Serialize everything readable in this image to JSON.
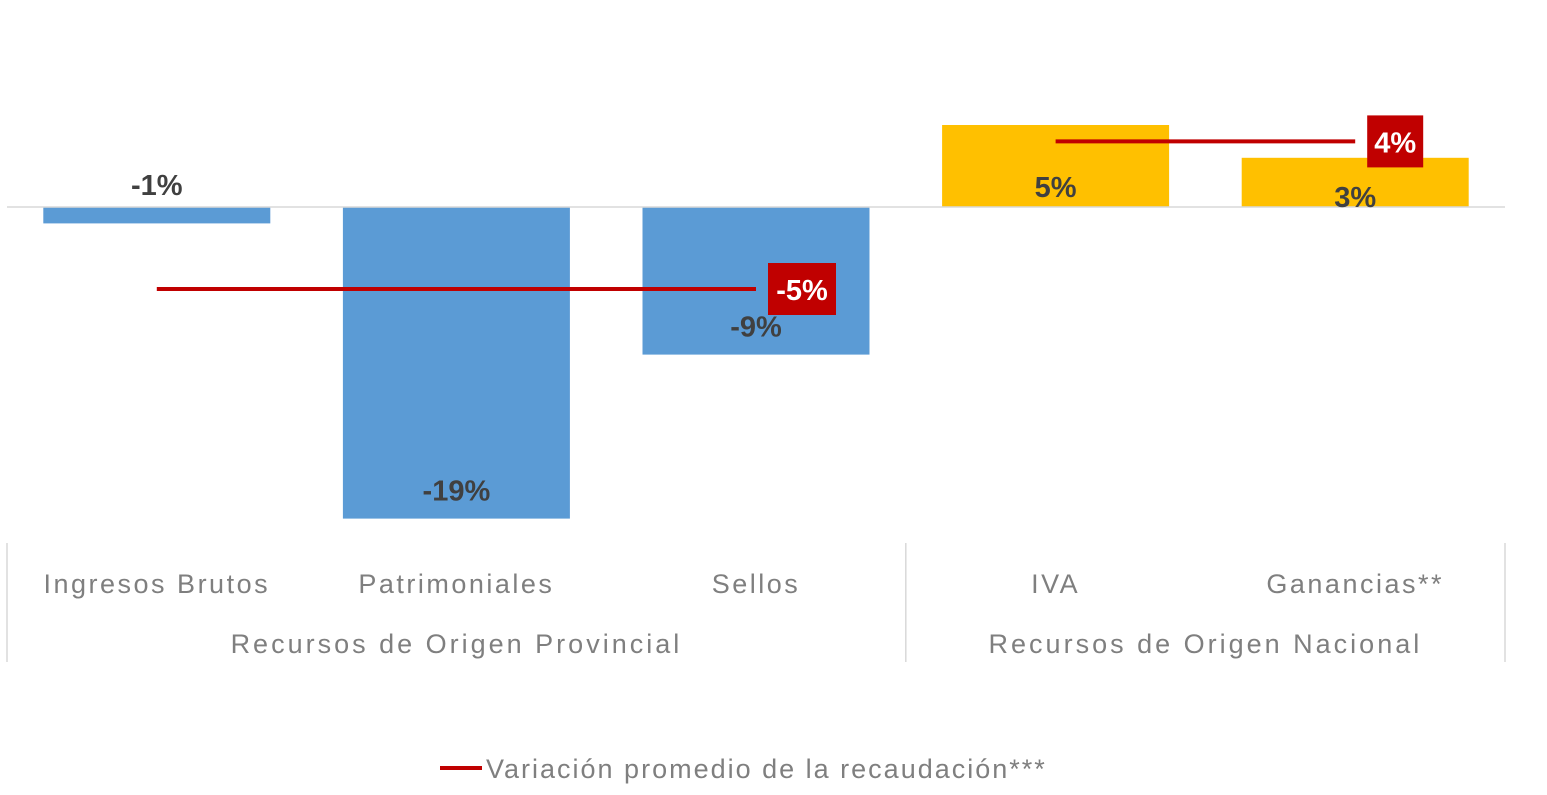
{
  "chart_data": {
    "type": "bar",
    "categories": [
      "Ingresos Brutos",
      "Patrimoniales",
      "Sellos",
      "IVA",
      "Ganancias**"
    ],
    "values": [
      -1,
      -19,
      -9,
      5,
      3
    ],
    "value_labels": [
      "-1%",
      "-19%",
      "-9%",
      "5%",
      "3%"
    ],
    "value_unit": "%",
    "groups": [
      {
        "label": "Recursos de Origen Provincial",
        "categories": [
          "Ingresos Brutos",
          "Patrimoniales",
          "Sellos"
        ],
        "average": -5,
        "average_label": "-5%",
        "bar_color": "#5b9bd5"
      },
      {
        "label": "Recursos de Origen Nacional",
        "categories": [
          "IVA",
          "Ganancias**"
        ],
        "average": 4,
        "average_label": "4%",
        "bar_color": "#ffc000"
      }
    ],
    "average_series": {
      "name": "Variación promedio de la recaudación***",
      "color": "#c00000"
    },
    "legend": {
      "position": "bottom",
      "entries": [
        "Variación promedio de la recaudación***"
      ]
    },
    "ylim": [
      -20,
      6
    ],
    "grid": false,
    "title": "",
    "xlabel": "",
    "ylabel": ""
  },
  "colors": {
    "axis": "#d9d9d9",
    "text": "#7f7f7f",
    "bar_label": "#404040"
  }
}
